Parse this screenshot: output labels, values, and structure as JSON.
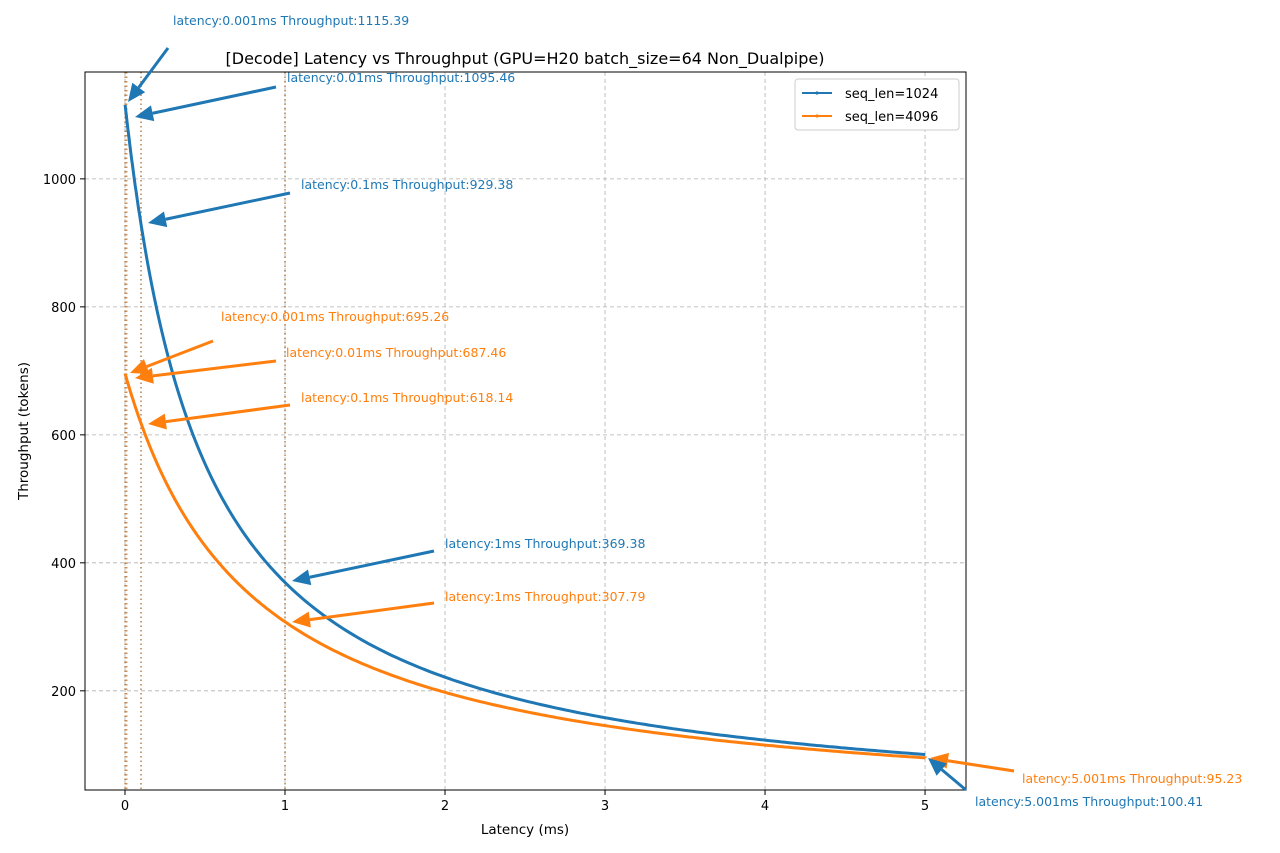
{
  "chart_data": {
    "type": "line",
    "title": "[Decode] Latency vs Throughput (GPU=H20 batch_size=64 Non_Dualpipe)",
    "xlabel": "Latency (ms)",
    "ylabel": "Throughput (tokens)",
    "xlim": [
      -0.25,
      5.256
    ],
    "ylim": [
      45,
      1167
    ],
    "xticks": [
      0,
      1,
      2,
      3,
      4,
      5
    ],
    "yticks": [
      200,
      400,
      600,
      800,
      1000
    ],
    "grid": true,
    "legend_position": "top-right",
    "series": [
      {
        "name": "seq_len=1024",
        "color": "#1f77b4",
        "x": [
          0.001,
          0.01,
          0.1,
          0.25,
          0.5,
          0.75,
          1,
          1.5,
          2,
          2.5,
          3,
          3.5,
          4,
          4.5,
          5,
          5.001
        ],
        "y": [
          1115.39,
          1095.46,
          929.38,
          741.1,
          554.9,
          443.5,
          369.38,
          276.8,
          221.3,
          184.4,
          158.0,
          138.2,
          122.9,
          110.6,
          100.43,
          100.41
        ]
      },
      {
        "name": "seq_len=4096",
        "color": "#ff7f0e",
        "x": [
          0.001,
          0.01,
          0.1,
          0.25,
          0.5,
          0.75,
          1,
          1.5,
          2,
          2.5,
          3,
          3.5,
          4,
          4.5,
          5,
          5.001
        ],
        "y": [
          695.26,
          687.46,
          618.14,
          528.8,
          426.7,
          357.6,
          307.79,
          240.7,
          197.6,
          167.6,
          145.6,
          128.6,
          115.2,
          104.3,
          95.25,
          95.23
        ]
      }
    ],
    "vlines": [
      0.001,
      0.01,
      0.1,
      1
    ],
    "annotations": [
      {
        "series": 0,
        "x": 0.001,
        "y": 1115.39,
        "text": "latency:0.001ms Throughput:1115.39"
      },
      {
        "series": 0,
        "x": 0.01,
        "y": 1095.46,
        "text": "latency:0.01ms Throughput:1095.46"
      },
      {
        "series": 0,
        "x": 0.1,
        "y": 929.38,
        "text": "latency:0.1ms Throughput:929.38"
      },
      {
        "series": 1,
        "x": 0.001,
        "y": 695.26,
        "text": "latency:0.001ms Throughput:695.26"
      },
      {
        "series": 1,
        "x": 0.01,
        "y": 687.46,
        "text": "latency:0.01ms Throughput:687.46"
      },
      {
        "series": 1,
        "x": 0.1,
        "y": 618.14,
        "text": "latency:0.1ms Throughput:618.14"
      },
      {
        "series": 0,
        "x": 1,
        "y": 369.38,
        "text": "latency:1ms Throughput:369.38"
      },
      {
        "series": 1,
        "x": 1,
        "y": 307.79,
        "text": "latency:1ms Throughput:307.79"
      },
      {
        "series": 1,
        "x": 5.001,
        "y": 95.23,
        "text": "latency:5.001ms Throughput:95.23"
      },
      {
        "series": 0,
        "x": 5.001,
        "y": 100.41,
        "text": "latency:5.001ms Throughput:100.41"
      }
    ]
  }
}
